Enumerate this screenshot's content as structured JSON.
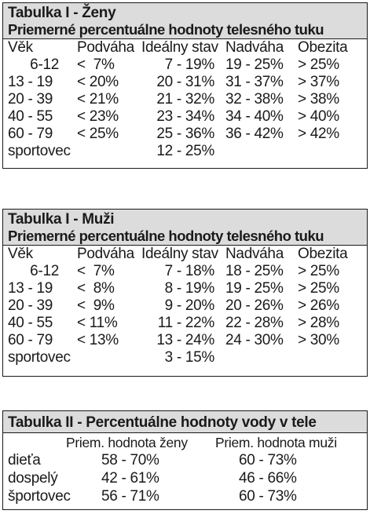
{
  "table1": {
    "title": "Tabulka I - Ženy",
    "subtitle": "Priemerné percentuálne hodnoty telesného tuku",
    "headers": [
      "Věk",
      "Podváha",
      "Ideálny stav",
      "Nadváha",
      "Obezita"
    ],
    "rows": [
      [
        "6-12",
        "<  7%",
        "7 - 19%",
        "19 - 25%",
        "> 25%"
      ],
      [
        "13 - 19",
        "< 20%",
        "20 - 31%",
        "31 - 37%",
        "> 37%"
      ],
      [
        "20 - 39",
        "< 21%",
        "21 - 32%",
        "32 - 38%",
        "> 38%"
      ],
      [
        "40 - 55",
        "< 23%",
        "23 - 34%",
        "34 - 40%",
        "> 40%"
      ],
      [
        "60 - 79",
        "< 25%",
        "25 - 36%",
        "36 - 42%",
        "> 42%"
      ],
      [
        "sportovec",
        "",
        "12 - 25%",
        "",
        ""
      ]
    ]
  },
  "table2": {
    "title": "Tabulka I - Muži",
    "subtitle": "Priemerné percentuálne hodnoty telesného tuku",
    "headers": [
      "Věk",
      "Podváha",
      "Ideálny stav",
      "Nadváha",
      "Obezita"
    ],
    "rows": [
      [
        "6-12",
        "<  7%",
        "7 - 18%",
        "18 - 25%",
        "> 25%"
      ],
      [
        "13 - 19",
        "<  8%",
        "8 - 19%",
        "19 - 25%",
        "> 25%"
      ],
      [
        "20 - 39",
        "<  9%",
        "9 - 20%",
        "20 - 26%",
        "> 26%"
      ],
      [
        "40 - 55",
        "< 11%",
        "11 - 22%",
        "22 - 28%",
        "> 28%"
      ],
      [
        "60 - 79",
        "< 13%",
        "13 - 24%",
        "24 - 30%",
        "> 30%"
      ],
      [
        "sportovec",
        "",
        "3 - 15%",
        "",
        ""
      ]
    ]
  },
  "table3": {
    "title": "Tabulka II - Percentuálne hodnoty vody v tele",
    "headers": [
      "",
      "Priem. hodnota ženy",
      "Priem. hodnota muži"
    ],
    "rows": [
      [
        "dieťa",
        "58 - 70%",
        "60 - 73%"
      ],
      [
        "dospelý",
        "42 - 61%",
        "46 - 66%"
      ],
      [
        "športovec",
        "56 - 71%",
        "60 - 73%"
      ]
    ]
  }
}
